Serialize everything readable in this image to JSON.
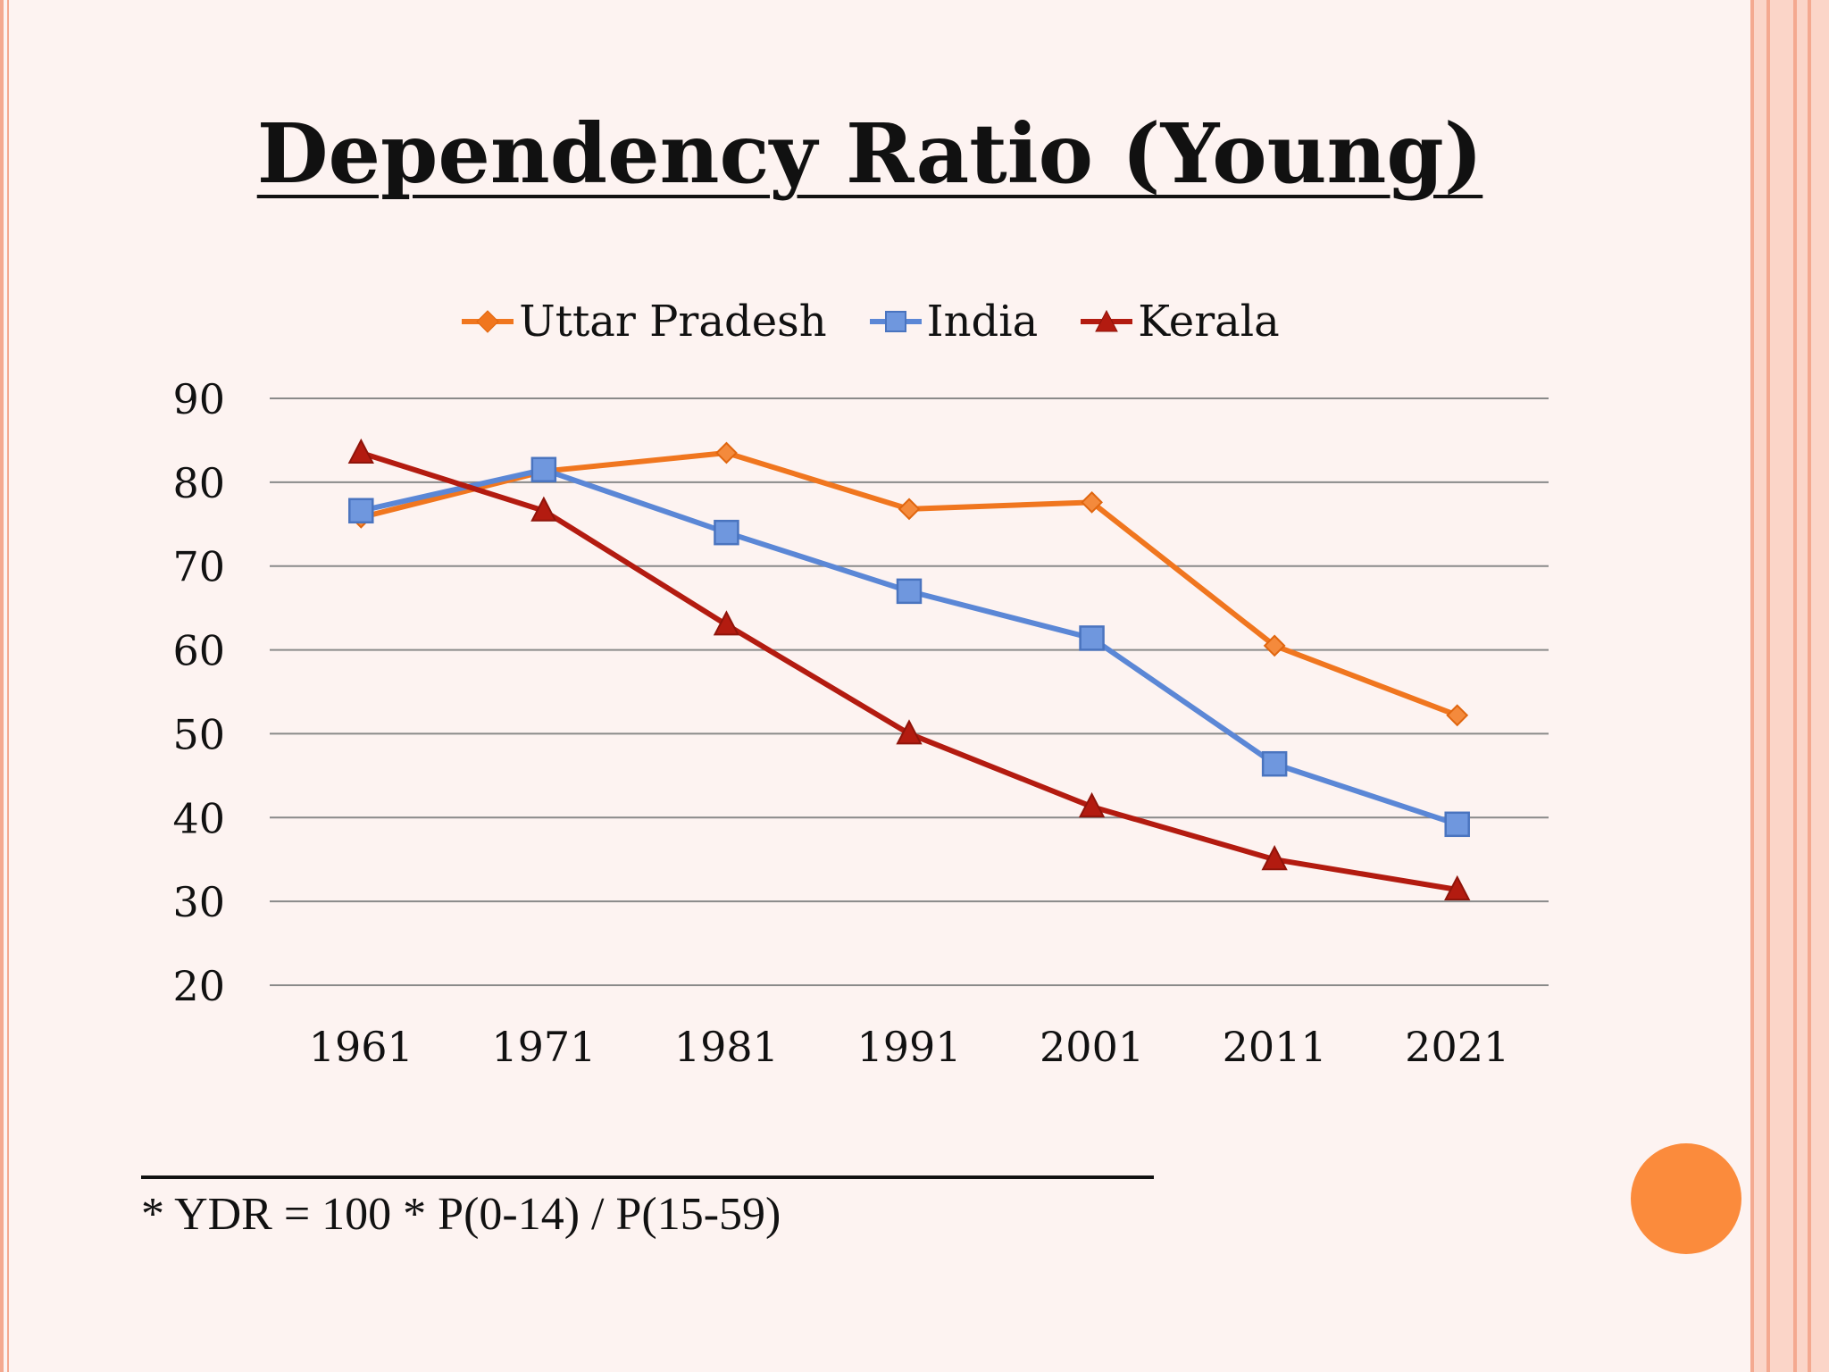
{
  "slide": {
    "title": "Dependency Ratio (Young)",
    "footnote": "* YDR = 100 * P(0-14) / P(15-59)",
    "accent_color": "#fb8b3c",
    "border_color": "#f4a990"
  },
  "chart_data": {
    "type": "line",
    "title": "",
    "xlabel": "",
    "ylabel": "",
    "categories": [
      "1961",
      "1971",
      "1981",
      "1991",
      "2001",
      "2011",
      "2021"
    ],
    "ylim": [
      20,
      90
    ],
    "yticks": [
      20,
      30,
      40,
      50,
      60,
      70,
      80,
      90
    ],
    "grid": true,
    "legend_position": "top",
    "series": [
      {
        "name": "Uttar Pradesh",
        "marker": "diamond",
        "color": "#f0761f",
        "values": [
          75.8,
          81.3,
          83.5,
          76.8,
          77.6,
          60.5,
          52.2
        ]
      },
      {
        "name": "India",
        "marker": "square",
        "color": "#5b87d6",
        "values": [
          76.6,
          81.5,
          74.0,
          67.0,
          61.4,
          46.4,
          39.2
        ]
      },
      {
        "name": "Kerala",
        "marker": "triangle",
        "color": "#b31b10",
        "values": [
          83.5,
          76.6,
          63.0,
          50.0,
          41.3,
          35.0,
          31.4
        ]
      }
    ]
  }
}
